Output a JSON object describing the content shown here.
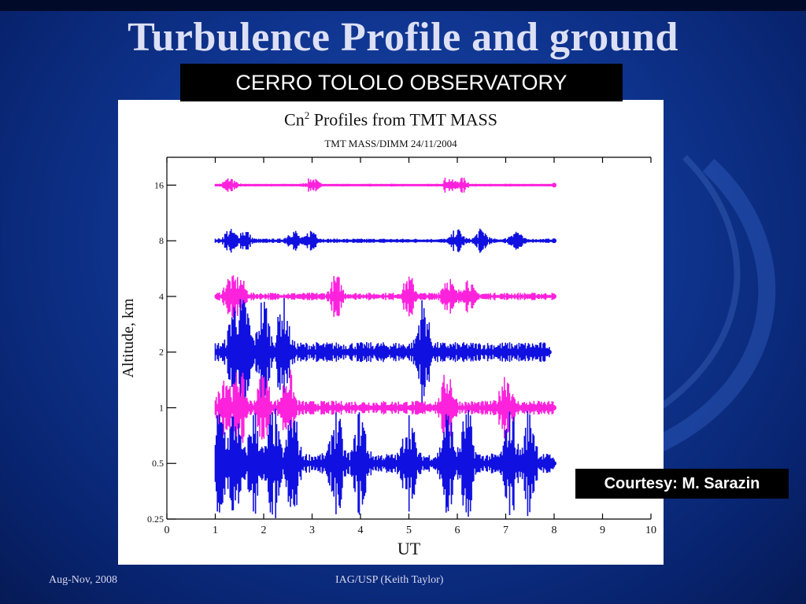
{
  "slide": {
    "title": "Turbulence Profile and ground",
    "observatory_label": "CERRO TOLOLO OBSERVATORY",
    "courtesy_label": "Courtesy: M. Sarazin",
    "footer_left": "Aug-Nov, 2008",
    "footer_center": "IAG/USP (Keith Taylor)"
  },
  "colors": {
    "background": "#0f3590",
    "magenta_series": "#ff22dd",
    "blue_series": "#1010e0"
  },
  "chart_data": {
    "type": "line",
    "title_main": "Cn",
    "title_superscript": "2",
    "title_rest": " Profiles from TMT MASS",
    "subtitle": "TMT MASS/DIMM 24/11/2004",
    "xlabel": "UT",
    "ylabel": "Altitude, km",
    "xlim": [
      0,
      10
    ],
    "x_ticks": [
      "0",
      "1",
      "2",
      "3",
      "4",
      "5",
      "6",
      "7",
      "8",
      "9",
      "10"
    ],
    "y_scale": "log",
    "y_ticks": [
      "0.25",
      "0.5",
      "1",
      "2",
      "4",
      "8",
      "16"
    ],
    "grid": false,
    "series": [
      {
        "altitude_km": 16,
        "color": "magenta",
        "ut_range": [
          1.0,
          8.0
        ],
        "max_amplitude": 0.14,
        "bursts": [
          1.3,
          3.0,
          5.8,
          6.1
        ]
      },
      {
        "altitude_km": 8,
        "color": "blue",
        "ut_range": [
          1.0,
          8.0
        ],
        "max_amplitude": 0.22,
        "bursts": [
          1.3,
          1.6,
          2.6,
          3.0,
          6.0,
          6.5,
          7.2
        ]
      },
      {
        "altitude_km": 4,
        "color": "magenta",
        "ut_range": [
          1.0,
          8.0
        ],
        "max_amplitude": 0.38,
        "bursts": [
          1.3,
          1.5,
          3.5,
          5.0,
          5.8,
          6.2
        ]
      },
      {
        "altitude_km": 2,
        "color": "blue",
        "ut_range": [
          1.0,
          7.9
        ],
        "max_amplitude": 1.0,
        "bursts": [
          1.4,
          1.6,
          2.0,
          2.4,
          5.3
        ]
      },
      {
        "altitude_km": 1,
        "color": "magenta",
        "ut_range": [
          1.0,
          8.0
        ],
        "max_amplitude": 0.7,
        "bursts": [
          1.2,
          1.5,
          2.0,
          2.5,
          5.8,
          7.0
        ]
      },
      {
        "altitude_km": 0.5,
        "color": "blue",
        "ut_range": [
          1.0,
          8.0
        ],
        "max_amplitude": 1.0,
        "bursts": [
          1.1,
          1.4,
          1.8,
          2.2,
          2.6,
          3.5,
          4.0,
          5.0,
          5.8,
          6.2,
          7.1,
          7.5
        ]
      }
    ]
  }
}
